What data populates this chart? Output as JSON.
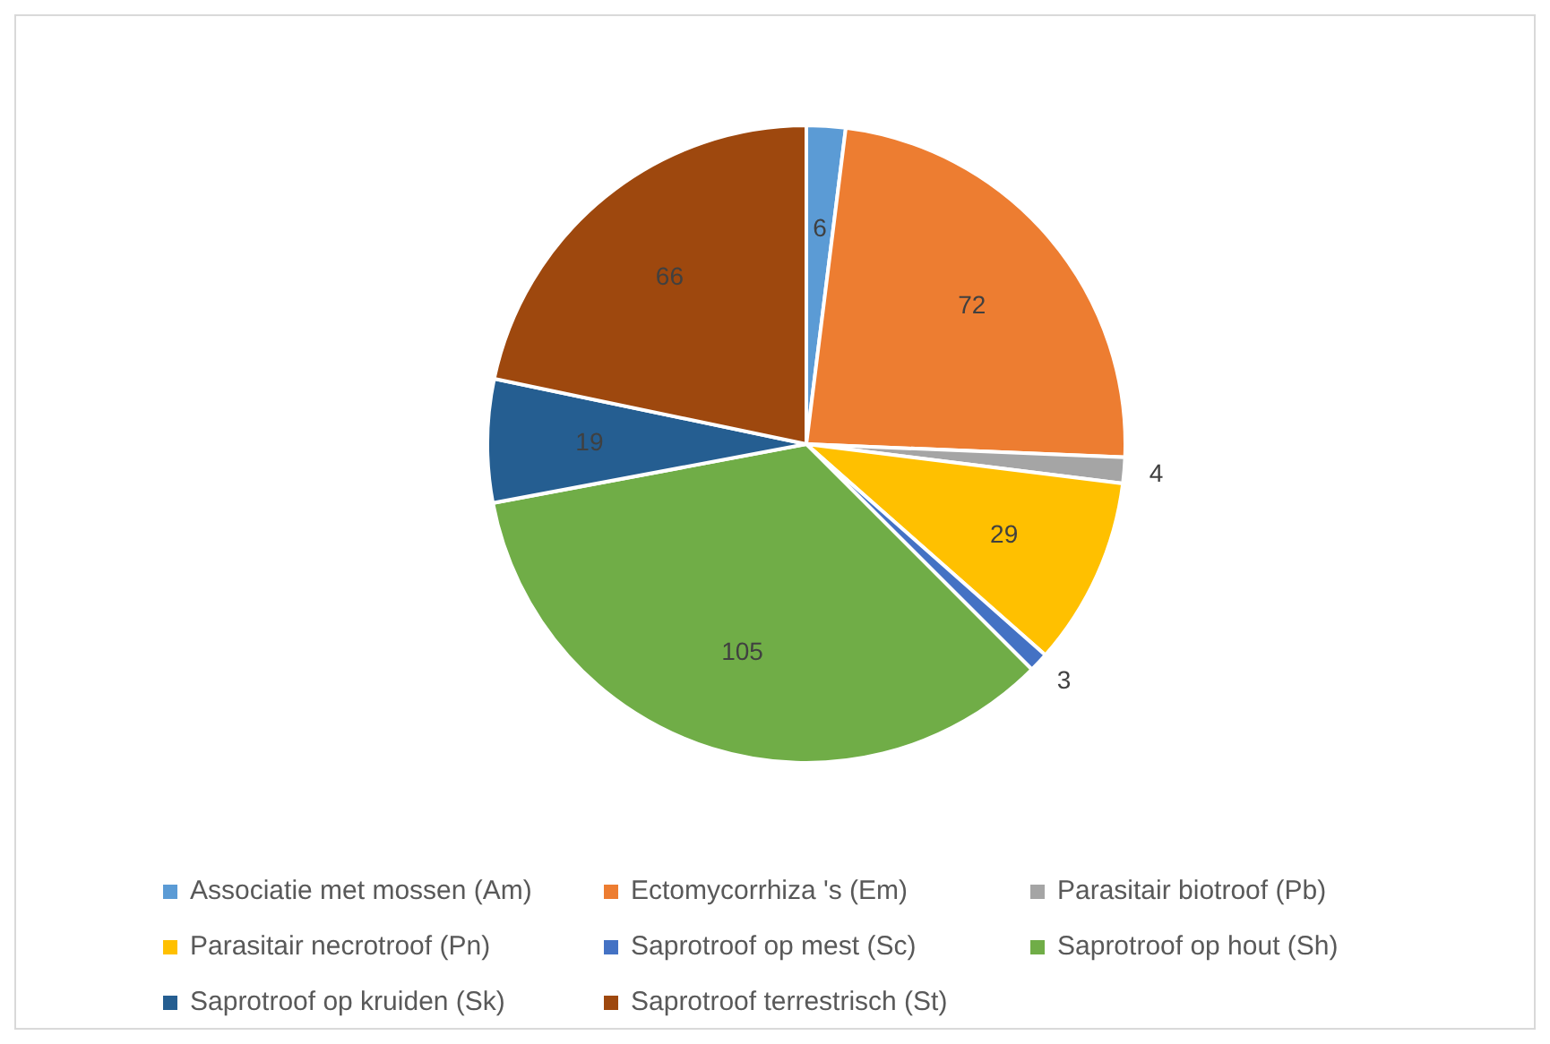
{
  "chart_data": {
    "type": "pie",
    "categories": [
      "Associatie met mossen (Am)",
      "Ectomycorrhiza 's (Em)",
      "Parasitair biotroof (Pb)",
      "Parasitair necrotroof (Pn)",
      "Saprotroof op mest (Sc)",
      "Saprotroof op hout (Sh)",
      "Saprotroof op kruiden (Sk)",
      "Saprotroof terrestrisch (St)"
    ],
    "values": [
      6,
      72,
      4,
      29,
      3,
      105,
      19,
      66
    ],
    "colors": [
      "#5b9bd5",
      "#ed7d31",
      "#a5a5a5",
      "#ffc000",
      "#4472c4",
      "#70ad47",
      "#255e91",
      "#9e480e"
    ],
    "data_labels": true,
    "legend": "bottom"
  }
}
